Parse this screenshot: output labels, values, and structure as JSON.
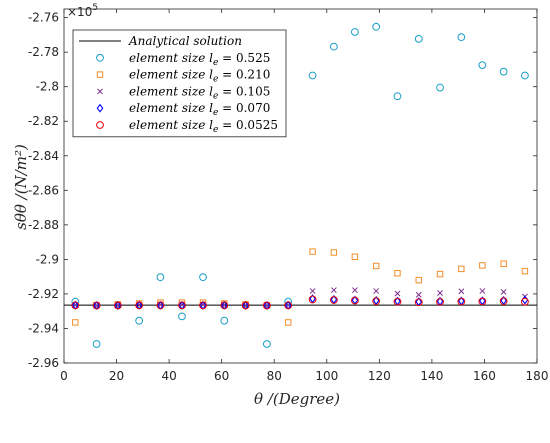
{
  "chart_data": {
    "type": "scatter",
    "xlabel": "θ /(Degree)",
    "ylabel": "sθθ /(N/m²)",
    "exponent_label": "×10",
    "exponent_power": "5",
    "xlim": [
      0,
      180
    ],
    "ylim": [
      -2.96,
      -2.755
    ],
    "xticks": [
      0,
      20,
      40,
      60,
      80,
      100,
      120,
      140,
      160,
      180
    ],
    "xtick_labels": [
      "0",
      "20",
      "40",
      "60",
      "80",
      "100",
      "120",
      "140",
      "160",
      "180"
    ],
    "yticks": [
      -2.96,
      -2.94,
      -2.92,
      -2.9,
      -2.88,
      -2.86,
      -2.84,
      -2.82,
      -2.8,
      -2.78,
      -2.76
    ],
    "ytick_labels": [
      "-2.96",
      "-2.94",
      "-2.92",
      "-2.9",
      "-2.88",
      "-2.86",
      "-2.84",
      "-2.82",
      "-2.8",
      "-2.78",
      "-2.76"
    ],
    "grid": false,
    "legend_position": "top-left",
    "analytical": {
      "name": "Analytical solution",
      "y": -2.9265,
      "color": "#000000"
    },
    "series": [
      {
        "name": "element size l",
        "sub": "e",
        "value": "= 0.525",
        "marker": "circle",
        "color": "#1a9ec9",
        "x": [
          4.3,
          12.4,
          28.6,
          36.7,
          44.9,
          52.9,
          61.0,
          77.2,
          85.3,
          94.6,
          102.7,
          110.7,
          118.8,
          126.9,
          135.0,
          143.1,
          151.2,
          159.2,
          167.3,
          175.4
        ],
        "y": [
          -2.9245,
          -2.949,
          -2.9355,
          -2.9103,
          -2.933,
          -2.9103,
          -2.9355,
          -2.949,
          -2.9245,
          -2.7935,
          -2.7768,
          -2.7683,
          -2.7653,
          -2.8055,
          -2.7723,
          -2.8005,
          -2.7713,
          -2.7875,
          -2.7913,
          -2.7935
        ]
      },
      {
        "name": "element size l",
        "sub": "e",
        "value": "= 0.210",
        "marker": "square",
        "color": "#f28e2b",
        "x": [
          4.3,
          12.4,
          20.5,
          28.6,
          36.7,
          44.9,
          52.9,
          61.0,
          69.1,
          77.2,
          85.3,
          94.6,
          102.7,
          110.7,
          118.8,
          126.9,
          135.0,
          143.1,
          151.2,
          159.2,
          167.3,
          175.4
        ],
        "y": [
          -2.9365,
          -2.9265,
          -2.926,
          -2.9255,
          -2.925,
          -2.925,
          -2.925,
          -2.9255,
          -2.926,
          -2.9265,
          -2.9365,
          -2.8955,
          -2.896,
          -2.8985,
          -2.9038,
          -2.908,
          -2.912,
          -2.9085,
          -2.9055,
          -2.9035,
          -2.9025,
          -2.9068
        ]
      },
      {
        "name": "element size l",
        "sub": "e",
        "value": "= 0.105",
        "marker": "cross",
        "color": "#7e2f8e",
        "x": [
          4.3,
          12.4,
          20.5,
          28.6,
          36.7,
          44.9,
          52.9,
          61.0,
          69.1,
          77.2,
          85.3,
          94.6,
          102.7,
          110.7,
          118.8,
          126.9,
          135.0,
          143.1,
          151.2,
          159.2,
          167.3,
          175.4
        ],
        "y": [
          -2.9265,
          -2.9268,
          -2.9266,
          -2.9264,
          -2.9262,
          -2.9262,
          -2.9262,
          -2.9264,
          -2.9266,
          -2.9268,
          -2.9265,
          -2.9183,
          -2.9178,
          -2.9178,
          -2.9183,
          -2.9198,
          -2.9205,
          -2.9195,
          -2.9185,
          -2.9183,
          -2.9188,
          -2.9215
        ]
      },
      {
        "name": "element size l",
        "sub": "e",
        "value": "= 0.070",
        "marker": "diamond",
        "color": "#0000ff",
        "x": [
          4.3,
          12.4,
          20.5,
          28.6,
          36.7,
          44.9,
          52.9,
          61.0,
          69.1,
          77.2,
          85.3,
          94.6,
          102.7,
          110.7,
          118.8,
          126.9,
          135.0,
          143.1,
          151.2,
          159.2,
          167.3,
          175.4
        ],
        "y": [
          -2.9266,
          -2.9267,
          -2.9267,
          -2.9266,
          -2.9266,
          -2.9266,
          -2.9266,
          -2.9266,
          -2.9267,
          -2.9267,
          -2.9266,
          -2.9228,
          -2.9232,
          -2.9236,
          -2.9238,
          -2.9242,
          -2.9245,
          -2.9243,
          -2.9241,
          -2.924,
          -2.9238,
          -2.9235
        ]
      },
      {
        "name": "element size l",
        "sub": "e",
        "value": "= 0.0525",
        "marker": "circle",
        "color": "#e8000b",
        "x": [
          4.3,
          12.4,
          20.5,
          28.6,
          36.7,
          44.9,
          52.9,
          61.0,
          69.1,
          77.2,
          85.3,
          94.6,
          102.7,
          110.7,
          118.8,
          126.9,
          135.0,
          143.1,
          151.2,
          159.2,
          167.3,
          175.4
        ],
        "y": [
          -2.9266,
          -2.9267,
          -2.9267,
          -2.9266,
          -2.9266,
          -2.9266,
          -2.9266,
          -2.9266,
          -2.9267,
          -2.9267,
          -2.9266,
          -2.9232,
          -2.9235,
          -2.9238,
          -2.9242,
          -2.9245,
          -2.9248,
          -2.9246,
          -2.9244,
          -2.9243,
          -2.9242,
          -2.9245
        ]
      }
    ]
  }
}
